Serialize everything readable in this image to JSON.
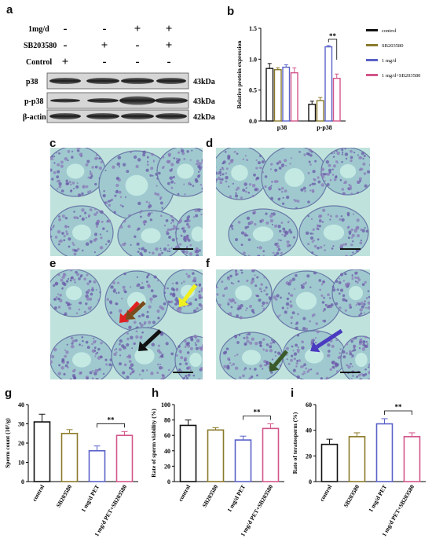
{
  "panels": {
    "a": "a",
    "b": "b",
    "c": "c",
    "d": "d",
    "e": "e",
    "f": "f",
    "g": "g",
    "h": "h",
    "i": "i"
  },
  "western_blot": {
    "treatment_labels": [
      "1mg/d",
      "SB203580",
      "Control"
    ],
    "signs": [
      [
        "-",
        "-",
        "+",
        "+"
      ],
      [
        "-",
        "+",
        "-",
        "+"
      ],
      [
        "+",
        "-",
        "-",
        "-"
      ]
    ],
    "bands": [
      {
        "name": "p38",
        "size": "43kDa"
      },
      {
        "name": "p-p38",
        "size": "43kDa"
      },
      {
        "name": "β-actin",
        "size": "42kDa"
      }
    ]
  },
  "colors": {
    "control": "#111111",
    "sb": "#8a7a2a",
    "pet": "#5a62c8",
    "pet_sb": "#d2558a",
    "tissue_bg": "#bfe3dc",
    "arrow_red": "#e02020",
    "arrow_brown": "#7a4a1a",
    "arrow_yellow": "#f0f020",
    "arrow_black": "#111111",
    "arrow_purple": "#4a3ac0",
    "arrow_green": "#3a5a2a"
  },
  "chart_data": [
    {
      "type": "bar",
      "panel": "b",
      "categories": [
        "p38",
        "p-p38"
      ],
      "series": [
        {
          "name": "control",
          "values": [
            0.85,
            0.27
          ],
          "errors": [
            0.08,
            0.05
          ]
        },
        {
          "name": "SB203580",
          "values": [
            0.83,
            0.33
          ],
          "errors": [
            0.03,
            0.05
          ]
        },
        {
          "name": "1 mg/d",
          "values": [
            0.87,
            1.2
          ],
          "errors": [
            0.04,
            0.02
          ]
        },
        {
          "name": "1 mg/d+SB203580",
          "values": [
            0.78,
            0.69
          ],
          "errors": [
            0.08,
            0.07
          ]
        }
      ],
      "ylabel": "Relative protein expression",
      "ylim": [
        0,
        1.5
      ],
      "yticks": [
        "0.0",
        "0.5",
        "1.0",
        "1.5"
      ],
      "significance": "**"
    },
    {
      "type": "bar",
      "panel": "g",
      "categories": [
        "control",
        "SB203580",
        "1 mg/d PET",
        "1 mg/d PET+SB203580"
      ],
      "values": [
        31,
        25,
        16,
        24
      ],
      "errors": [
        4,
        2,
        2.5,
        2
      ],
      "ylabel": "Sperm count (10⁷/g)",
      "ylim": [
        0,
        40
      ],
      "yticks": [
        "0",
        "10",
        "20",
        "30",
        "40"
      ],
      "significance": "**"
    },
    {
      "type": "bar",
      "panel": "h",
      "categories": [
        "control",
        "SB203580",
        "1 mg/d PET",
        "1 mg/d PET+SB203580"
      ],
      "values": [
        73,
        67,
        54,
        69
      ],
      "errors": [
        7,
        3,
        5,
        6
      ],
      "ylabel": "Rate of sperm viability (%)",
      "ylim": [
        0,
        100
      ],
      "yticks": [
        "0",
        "20",
        "40",
        "60",
        "80",
        "100"
      ],
      "significance": "**"
    },
    {
      "type": "bar",
      "panel": "i",
      "categories": [
        "control",
        "SB203580",
        "1 mg/d PET",
        "1 mg/d PET+SB203580"
      ],
      "values": [
        29,
        35,
        45,
        35
      ],
      "errors": [
        4,
        3,
        4,
        3
      ],
      "ylabel": "Rate of teratosperm (%)",
      "ylim": [
        0,
        60
      ],
      "yticks": [
        "0",
        "20",
        "40",
        "60"
      ],
      "significance": "**"
    }
  ]
}
